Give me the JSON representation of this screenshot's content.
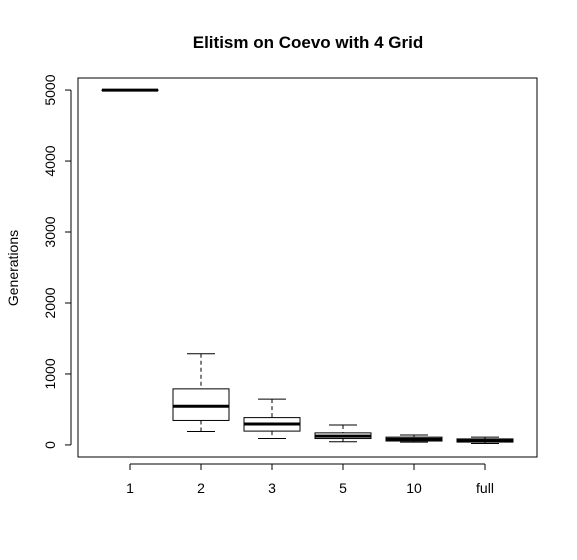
{
  "chart_data": {
    "type": "boxplot",
    "title": "Elitism on Coevo with 4 Grid",
    "xlabel": "",
    "ylabel": "Generations",
    "ylim": [
      -170,
      5170
    ],
    "y_ticks": [
      0,
      1000,
      2000,
      3000,
      4000,
      5000
    ],
    "grid": false,
    "legend": "none",
    "categories": [
      "1",
      "2",
      "3",
      "5",
      "10",
      "full"
    ],
    "boxes": [
      {
        "category": "1",
        "min": 5000,
        "q1": 5000,
        "median": 5000,
        "q3": 5000,
        "max": 5000
      },
      {
        "category": "2",
        "min": 190,
        "q1": 345,
        "median": 545,
        "q3": 790,
        "max": 1285
      },
      {
        "category": "3",
        "min": 90,
        "q1": 195,
        "median": 295,
        "q3": 385,
        "max": 645
      },
      {
        "category": "5",
        "min": 45,
        "q1": 90,
        "median": 125,
        "q3": 170,
        "max": 280
      },
      {
        "category": "10",
        "min": 40,
        "q1": 55,
        "median": 80,
        "q3": 110,
        "max": 140
      },
      {
        "category": "full",
        "min": 20,
        "q1": 40,
        "median": 60,
        "q3": 85,
        "max": 110
      }
    ],
    "colors": {
      "stroke": "#000000",
      "box_fill": "#ffffff"
    }
  }
}
